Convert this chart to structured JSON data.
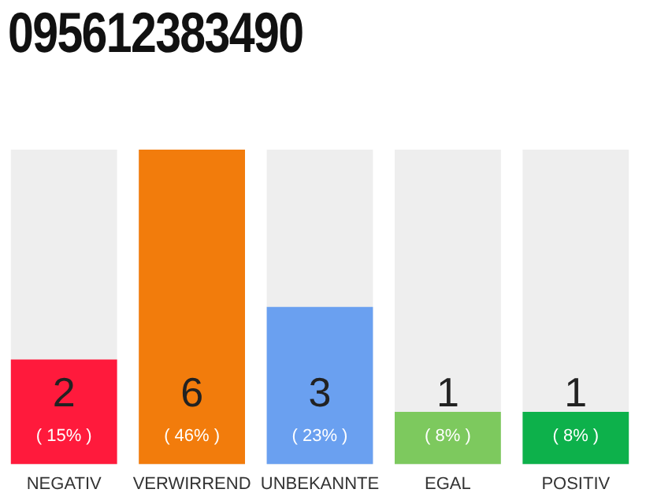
{
  "chart_data": {
    "type": "bar",
    "title": "095612383490",
    "categories": [
      "NEGATIV",
      "VERWIRREND",
      "UNBEKANNTE",
      "EGAL",
      "POSITIV"
    ],
    "values": [
      2,
      6,
      3,
      1,
      1
    ],
    "colors": [
      "#ff1a3c",
      "#f27c0c",
      "#6aa0f0",
      "#7dc95e",
      "#0db14b"
    ],
    "value_labels": [
      "2\n( 15% )",
      "6\n( 46% )",
      "3\n( 23% )",
      "1\n( 8% )",
      "1\n( 8% )"
    ],
    "ylim": [
      0,
      6
    ],
    "grid": false,
    "legend": false
  }
}
